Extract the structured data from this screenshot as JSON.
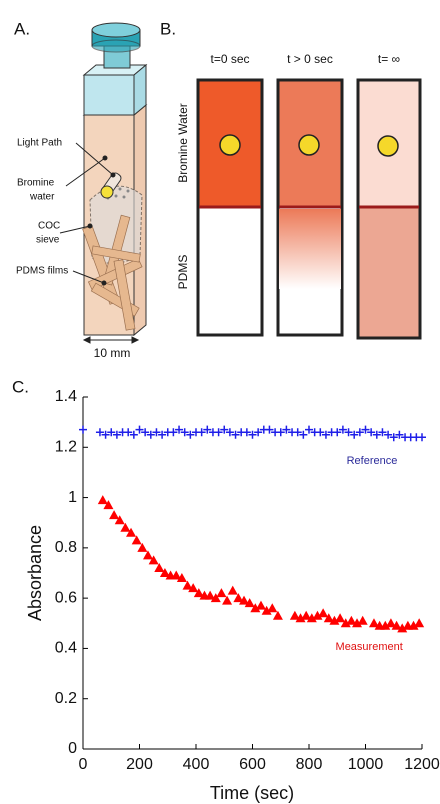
{
  "panel_a": {
    "label": "A.",
    "light_path": "Light Path",
    "bromine_water": [
      "Bromine",
      "water"
    ],
    "coc_sieve": [
      "COC",
      "sieve"
    ],
    "pdms_films": "PDMS films",
    "scale": "10 mm"
  },
  "panel_b": {
    "label": "B.",
    "columns": [
      "t=0 sec",
      "t > 0 sec",
      "t= ∞"
    ],
    "bromine_water": "Bromine Water",
    "pdms": "PDMS"
  },
  "panel_c": {
    "label": "C."
  },
  "chart_data": {
    "type": "scatter",
    "x_label": "Time (sec)",
    "y_label": "Absorbance",
    "xlim": [
      0,
      1200
    ],
    "ylim": [
      0,
      1.4
    ],
    "xticks": [
      0,
      200,
      400,
      600,
      800,
      1000,
      1200
    ],
    "yticks": [
      0,
      0.2,
      0.4,
      0.6,
      0.8,
      1,
      1.2,
      1.4
    ],
    "series": [
      {
        "name": "Reference",
        "color": "#1f1fe8",
        "label_color": "#2b2b9a",
        "marker": "plus",
        "x": [
          0,
          60,
          80,
          100,
          120,
          140,
          160,
          180,
          200,
          220,
          240,
          260,
          280,
          300,
          320,
          340,
          360,
          380,
          400,
          420,
          440,
          460,
          480,
          500,
          520,
          540,
          560,
          580,
          600,
          620,
          640,
          660,
          680,
          700,
          720,
          740,
          760,
          780,
          800,
          820,
          840,
          860,
          880,
          900,
          920,
          940,
          960,
          980,
          1000,
          1020,
          1040,
          1060,
          1080,
          1100,
          1120,
          1140,
          1160,
          1180,
          1200
        ],
        "values": [
          1.27,
          1.26,
          1.25,
          1.26,
          1.25,
          1.26,
          1.26,
          1.25,
          1.27,
          1.26,
          1.25,
          1.26,
          1.25,
          1.26,
          1.26,
          1.27,
          1.26,
          1.25,
          1.26,
          1.26,
          1.27,
          1.26,
          1.26,
          1.27,
          1.26,
          1.25,
          1.26,
          1.26,
          1.25,
          1.26,
          1.27,
          1.27,
          1.26,
          1.26,
          1.27,
          1.26,
          1.26,
          1.25,
          1.27,
          1.26,
          1.26,
          1.25,
          1.26,
          1.26,
          1.27,
          1.26,
          1.25,
          1.26,
          1.27,
          1.26,
          1.25,
          1.26,
          1.25,
          1.24,
          1.25,
          1.24,
          1.24,
          1.24,
          1.24
        ]
      },
      {
        "name": "Measurement",
        "color": "#ff0000",
        "label_color": "#e01010",
        "marker": "triangle",
        "x": [
          70,
          90,
          110,
          130,
          150,
          170,
          190,
          210,
          230,
          250,
          270,
          290,
          310,
          330,
          350,
          370,
          390,
          410,
          430,
          450,
          470,
          490,
          510,
          530,
          550,
          570,
          590,
          610,
          630,
          650,
          670,
          690,
          750,
          770,
          790,
          810,
          830,
          850,
          870,
          890,
          910,
          930,
          950,
          970,
          990,
          1030,
          1050,
          1070,
          1090,
          1110,
          1130,
          1150,
          1170,
          1190
        ],
        "values": [
          0.99,
          0.97,
          0.93,
          0.91,
          0.88,
          0.86,
          0.83,
          0.8,
          0.77,
          0.75,
          0.72,
          0.7,
          0.69,
          0.69,
          0.68,
          0.65,
          0.64,
          0.62,
          0.61,
          0.61,
          0.6,
          0.62,
          0.59,
          0.63,
          0.6,
          0.59,
          0.58,
          0.56,
          0.57,
          0.55,
          0.56,
          0.53,
          0.53,
          0.52,
          0.53,
          0.52,
          0.53,
          0.54,
          0.52,
          0.51,
          0.52,
          0.5,
          0.51,
          0.5,
          0.51,
          0.5,
          0.49,
          0.49,
          0.5,
          0.49,
          0.48,
          0.49,
          0.49,
          0.5
        ]
      }
    ]
  }
}
